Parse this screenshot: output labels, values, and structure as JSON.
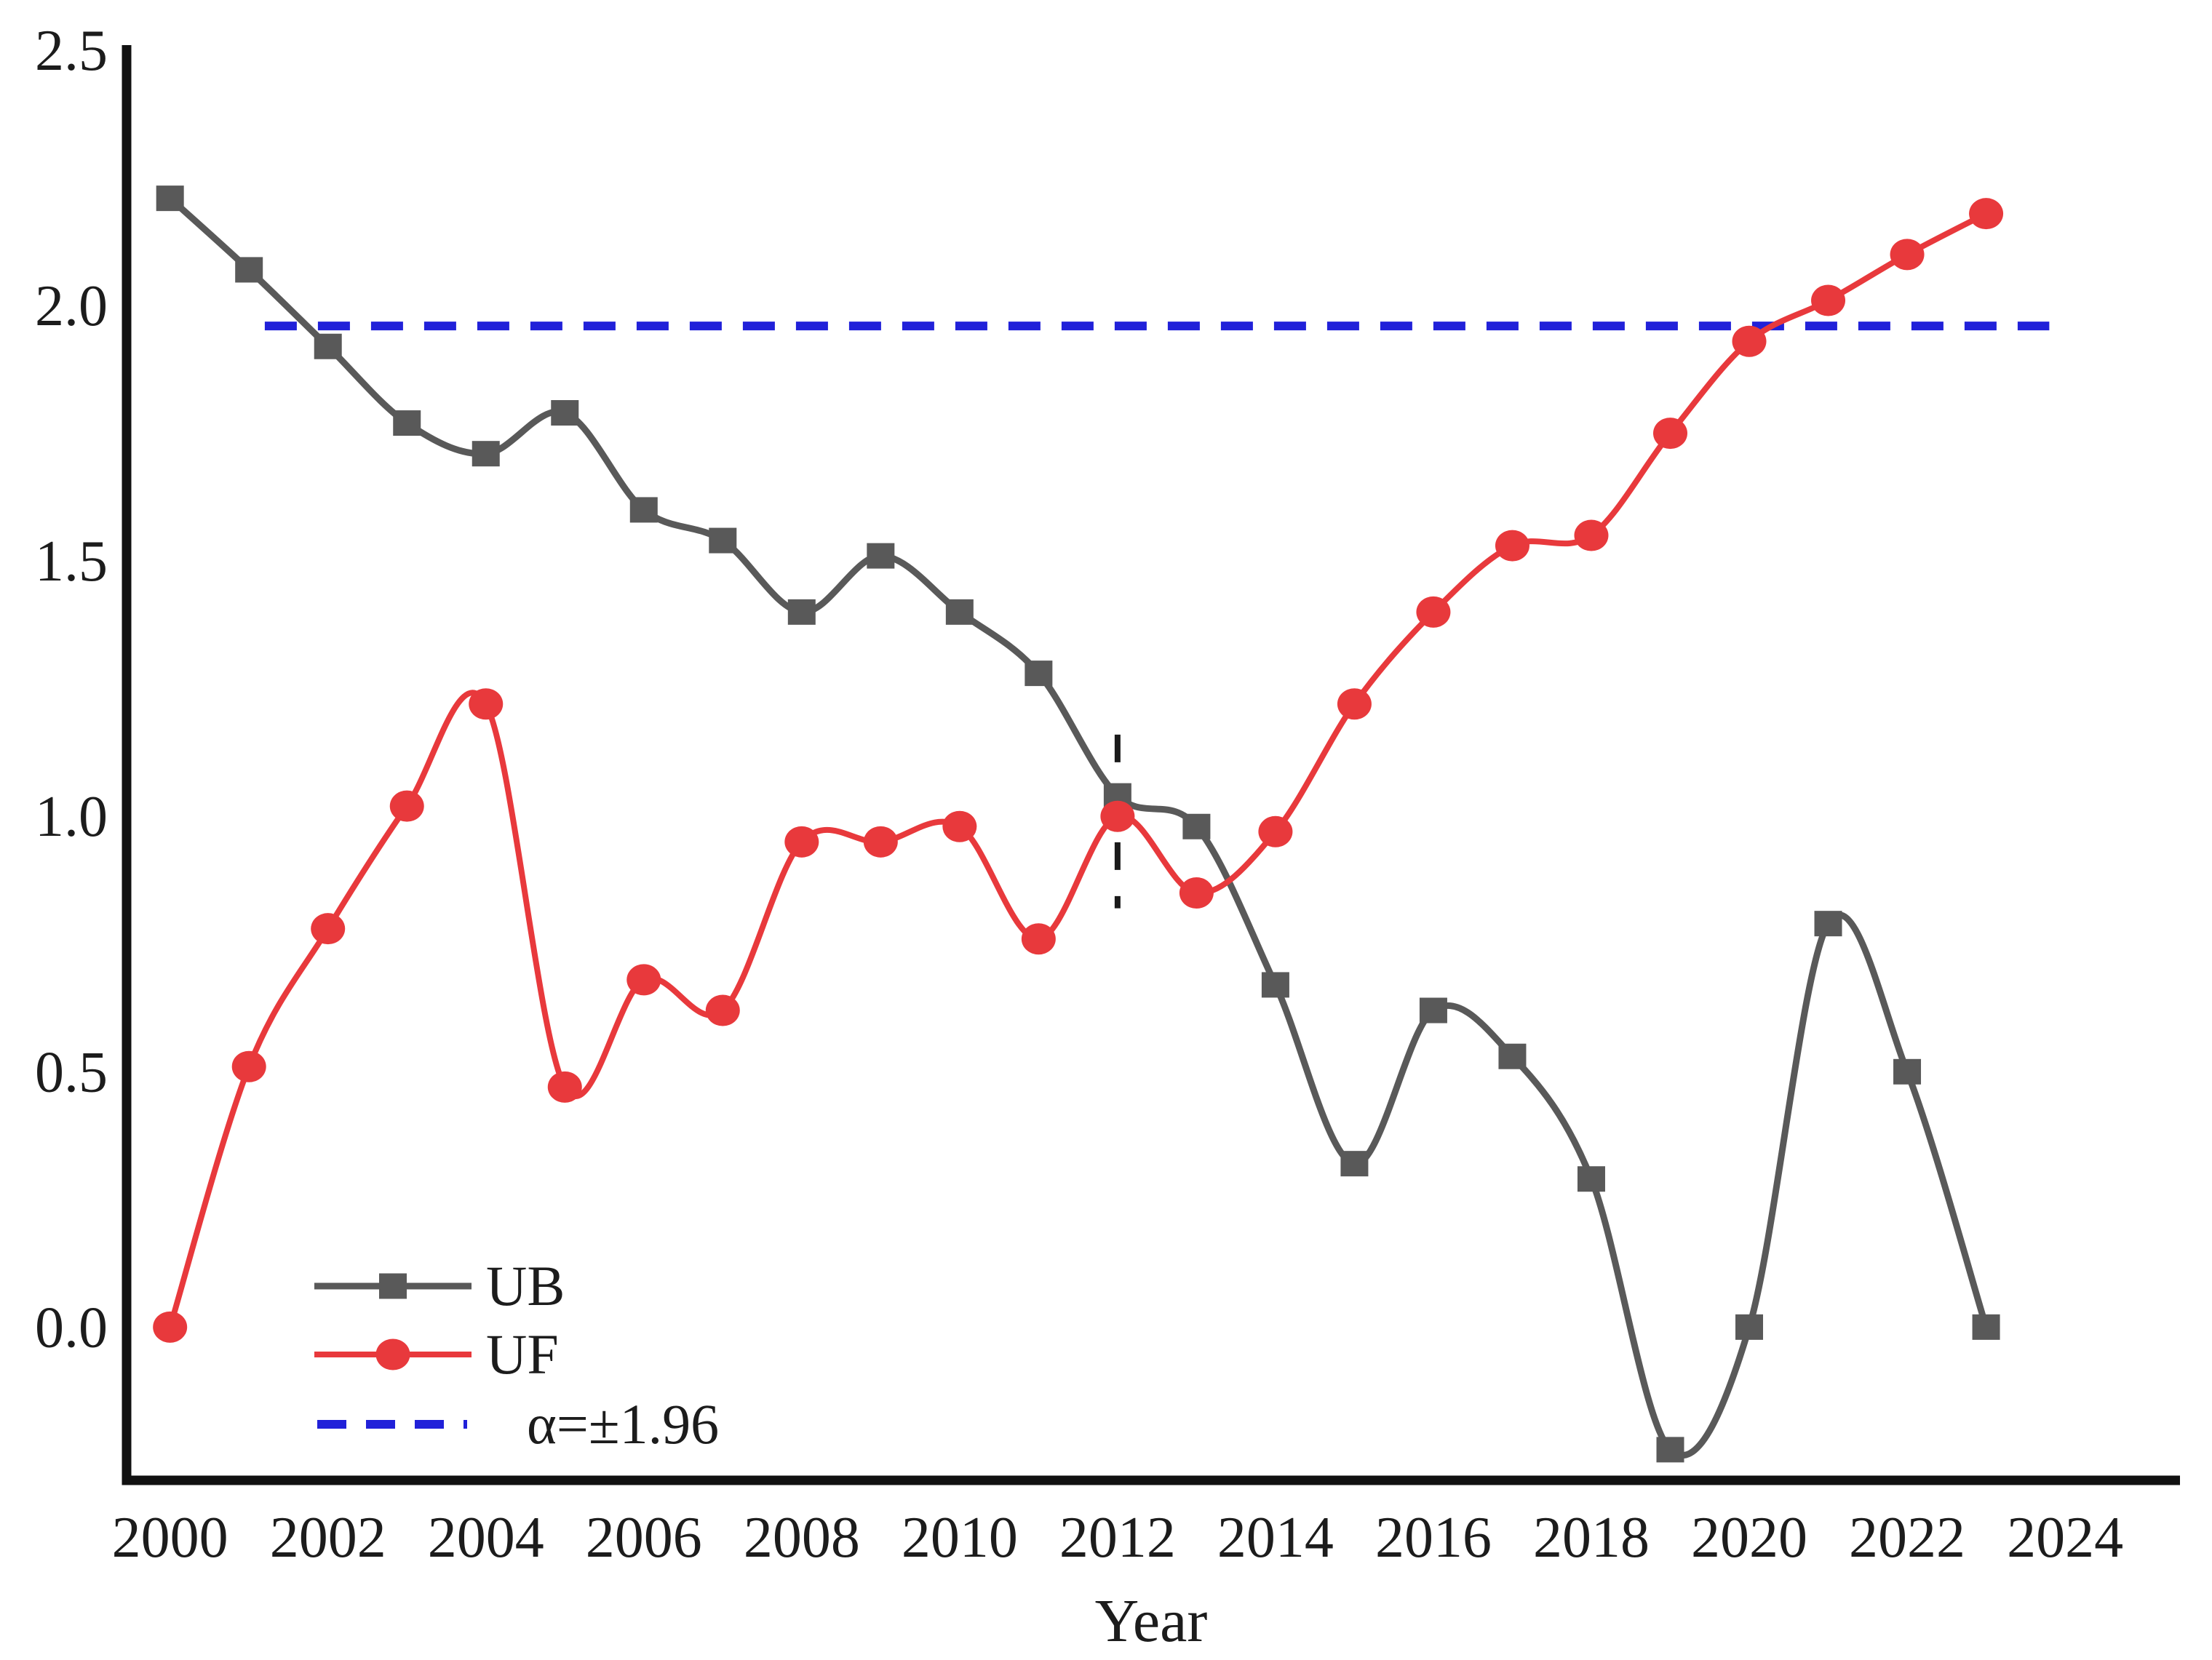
{
  "figure": {
    "background_color": "#ffffff",
    "text_color": "#1c1c1c"
  },
  "chart_data": {
    "type": "line",
    "title": "",
    "xlabel": "Year",
    "ylabel": "",
    "x": [
      2000,
      2001,
      2002,
      2003,
      2004,
      2005,
      2006,
      2007,
      2008,
      2009,
      2010,
      2011,
      2012,
      2013,
      2014,
      2015,
      2016,
      2017,
      2018,
      2019,
      2020,
      2021,
      2022,
      2023
    ],
    "series": [
      {
        "name": "UB",
        "color": "#595959",
        "marker": "square",
        "values": [
          2.21,
          2.07,
          1.92,
          1.77,
          1.71,
          1.79,
          1.6,
          1.54,
          1.4,
          1.51,
          1.4,
          1.28,
          1.04,
          0.98,
          0.67,
          0.32,
          0.62,
          0.53,
          0.29,
          -0.24,
          0.0,
          0.79,
          0.5,
          0.0
        ]
      },
      {
        "name": "UF",
        "color": "#e8393c",
        "marker": "circle",
        "values": [
          0.0,
          0.51,
          0.78,
          1.02,
          1.22,
          0.47,
          0.68,
          0.62,
          0.95,
          0.95,
          0.98,
          0.76,
          1.0,
          0.85,
          0.97,
          1.22,
          1.4,
          1.53,
          1.55,
          1.75,
          1.93,
          2.01,
          2.1,
          2.18
        ]
      }
    ],
    "reference_lines": [
      {
        "type": "hline",
        "y": 1.96,
        "style": "dashed",
        "color": "#2121d9",
        "label": "α=±1.96",
        "x_from": 2001.2,
        "x_to": 2023.8
      },
      {
        "type": "vline",
        "x": 2012,
        "style": "dashed",
        "color": "#1a1a1a",
        "y_from": 0.82,
        "y_to": 1.16
      }
    ],
    "xlim": [
      1999.45,
      2025.4
    ],
    "ylim": [
      -0.3,
      2.5
    ],
    "x_ticks": [
      "2000",
      "2002",
      "2004",
      "2006",
      "2008",
      "2010",
      "2012",
      "2014",
      "2016",
      "2018",
      "2020",
      "2022",
      "2024"
    ],
    "x_tick_years": [
      2000,
      2002,
      2004,
      2006,
      2008,
      2010,
      2012,
      2014,
      2016,
      2018,
      2020,
      2022,
      2024
    ],
    "y_ticks": [
      "0.0",
      "0.5",
      "1.0",
      "1.5",
      "2.0",
      "2.5"
    ],
    "y_tick_values": [
      0.0,
      0.5,
      1.0,
      1.5,
      2.0,
      2.5
    ],
    "grid": false,
    "legend": {
      "position": "lower-left",
      "entries": [
        {
          "label": "UB",
          "color": "#595959",
          "marker": "square",
          "line_style": "solid"
        },
        {
          "label": "UF",
          "color": "#e8393c",
          "marker": "circle",
          "line_style": "solid"
        },
        {
          "label": "α=±1.96",
          "color": "#2121d9",
          "marker": "none",
          "line_style": "dashed"
        }
      ]
    }
  }
}
